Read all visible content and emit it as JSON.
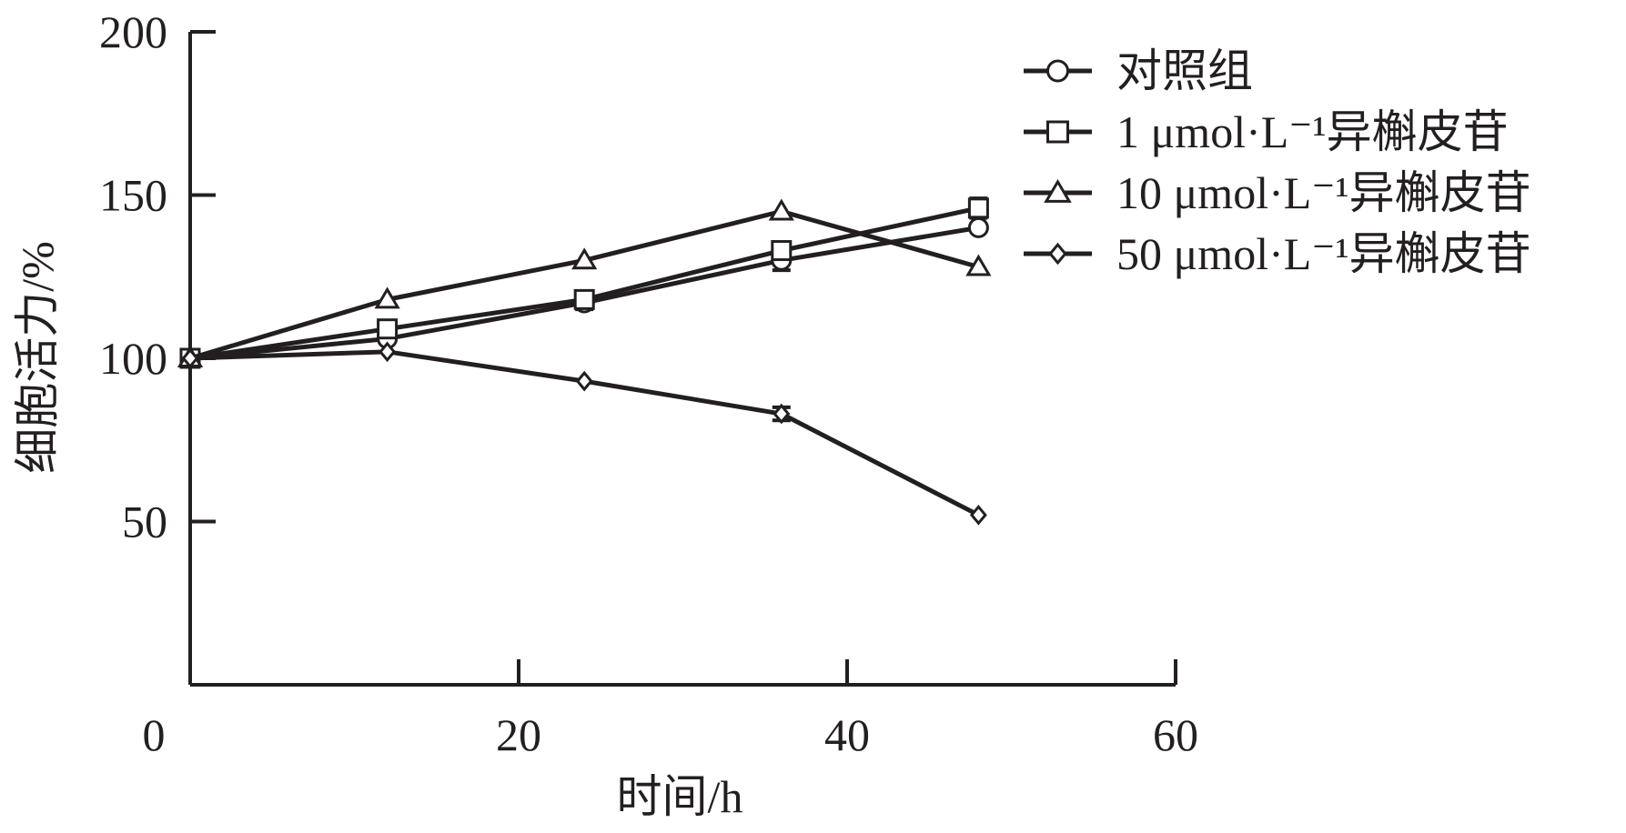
{
  "chart_data": {
    "type": "line",
    "xlabel": "时间/h",
    "ylabel": "细胞活力/%",
    "xlim": [
      0,
      60
    ],
    "ylim": [
      0,
      200
    ],
    "xticks": [
      0,
      20,
      40,
      60
    ],
    "yticks": [
      50,
      100,
      150,
      200
    ],
    "legend_position": "top-right",
    "grid": false,
    "x": [
      0,
      12,
      24,
      36,
      48
    ],
    "series": [
      {
        "name": "对照组",
        "marker": "circle",
        "values": [
          100,
          106,
          117,
          130,
          140
        ],
        "errors": [
          0,
          0,
          2,
          3,
          0
        ]
      },
      {
        "name": "1 μmol·L⁻¹异槲皮苷",
        "marker": "square",
        "values": [
          100,
          109,
          118,
          133,
          146
        ],
        "errors": [
          0,
          0,
          2,
          2,
          3
        ]
      },
      {
        "name": "10 μmol·L⁻¹异槲皮苷",
        "marker": "triangle",
        "values": [
          100,
          118,
          130,
          145,
          128
        ],
        "errors": [
          0,
          0,
          0,
          0,
          0
        ]
      },
      {
        "name": "50 μmol·L⁻¹异槲皮苷",
        "marker": "diamond",
        "values": [
          100,
          102,
          93,
          83,
          52
        ],
        "errors": [
          0,
          0,
          0,
          2,
          0
        ]
      }
    ]
  },
  "colors": {
    "ink": "#231f20",
    "background": "#ffffff"
  }
}
